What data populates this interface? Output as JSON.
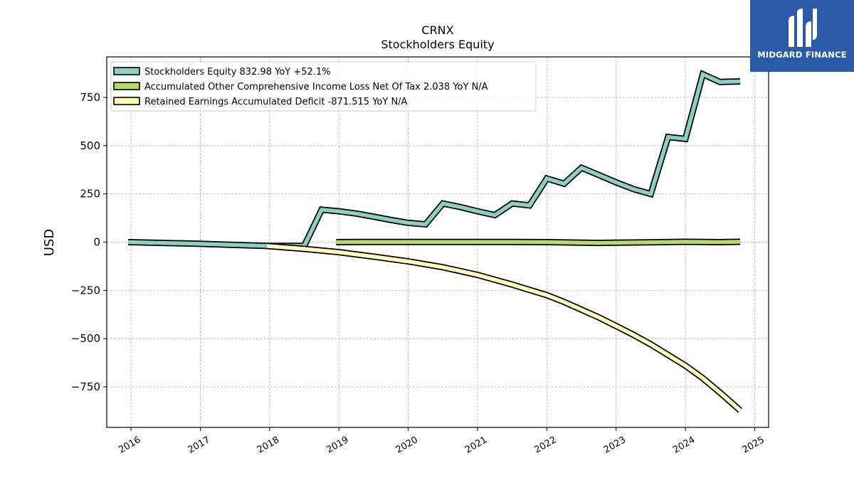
{
  "brand": {
    "name": "MIDGARD FINANCE",
    "bg_color": "#2b5aa8"
  },
  "chart_data": {
    "type": "line",
    "title": "CRNX",
    "subtitle": "Stockholders  Equity",
    "ylabel": "USD",
    "xlabel": "",
    "xlim": [
      2015.65,
      2025.2
    ],
    "ylim": [
      -960,
      960
    ],
    "yticks": [
      750,
      500,
      250,
      0,
      -250,
      -500,
      -750
    ],
    "ytick_labels": [
      "750",
      "500",
      "250",
      "0",
      "−250",
      "−500",
      "−750"
    ],
    "xticks": [
      2016,
      2017,
      2018,
      2019,
      2020,
      2021,
      2022,
      2023,
      2024,
      2025
    ],
    "xtick_labels": [
      "2016",
      "2017",
      "2018",
      "2019",
      "2020",
      "2021",
      "2022",
      "2023",
      "2024",
      "2025"
    ],
    "grid": true,
    "legend_position": "top-left",
    "series": [
      {
        "name": "Stockholders Equity  832.98 YoY +52.1%",
        "color": "#8ecfc4",
        "points": [
          [
            2015.96,
            0
          ],
          [
            2016.96,
            -8
          ],
          [
            2017.96,
            -20
          ],
          [
            2018.5,
            -20
          ],
          [
            2018.75,
            168
          ],
          [
            2019.0,
            160
          ],
          [
            2019.25,
            148
          ],
          [
            2019.5,
            132
          ],
          [
            2019.75,
            115
          ],
          [
            2020.0,
            100
          ],
          [
            2020.25,
            92
          ],
          [
            2020.5,
            200
          ],
          [
            2020.75,
            182
          ],
          [
            2021.0,
            160
          ],
          [
            2021.25,
            140
          ],
          [
            2021.5,
            200
          ],
          [
            2021.75,
            190
          ],
          [
            2022.0,
            330
          ],
          [
            2022.25,
            303
          ],
          [
            2022.5,
            385
          ],
          [
            2022.75,
            348
          ],
          [
            2023.0,
            310
          ],
          [
            2023.25,
            275
          ],
          [
            2023.5,
            250
          ],
          [
            2023.75,
            545
          ],
          [
            2024.0,
            535
          ],
          [
            2024.25,
            870
          ],
          [
            2024.5,
            830
          ],
          [
            2024.79,
            833
          ]
        ]
      },
      {
        "name": "Accumulated Other Comprehensive Income Loss Net Of Tax  2.038 YoY N/A",
        "color": "#b5d96b",
        "points": [
          [
            2018.96,
            0
          ],
          [
            2019.5,
            1
          ],
          [
            2020.0,
            1
          ],
          [
            2020.5,
            1
          ],
          [
            2021.0,
            1
          ],
          [
            2021.5,
            1
          ],
          [
            2022.0,
            0
          ],
          [
            2022.5,
            -3
          ],
          [
            2022.75,
            -4
          ],
          [
            2023.0,
            -3
          ],
          [
            2023.5,
            -1
          ],
          [
            2024.0,
            2
          ],
          [
            2024.5,
            0
          ],
          [
            2024.79,
            2
          ]
        ]
      },
      {
        "name": "Retained Earnings Accumulated Deficit  -871.515 YoY N/A",
        "color": "#ffffbe",
        "points": [
          [
            2017.96,
            -20
          ],
          [
            2018.5,
            -35
          ],
          [
            2019.0,
            -52
          ],
          [
            2019.5,
            -75
          ],
          [
            2020.0,
            -100
          ],
          [
            2020.5,
            -130
          ],
          [
            2021.0,
            -170
          ],
          [
            2021.5,
            -220
          ],
          [
            2022.0,
            -275
          ],
          [
            2022.25,
            -310
          ],
          [
            2022.5,
            -350
          ],
          [
            2022.75,
            -390
          ],
          [
            2023.0,
            -435
          ],
          [
            2023.25,
            -480
          ],
          [
            2023.5,
            -530
          ],
          [
            2023.75,
            -585
          ],
          [
            2024.0,
            -640
          ],
          [
            2024.25,
            -705
          ],
          [
            2024.5,
            -780
          ],
          [
            2024.79,
            -872
          ]
        ]
      }
    ]
  }
}
